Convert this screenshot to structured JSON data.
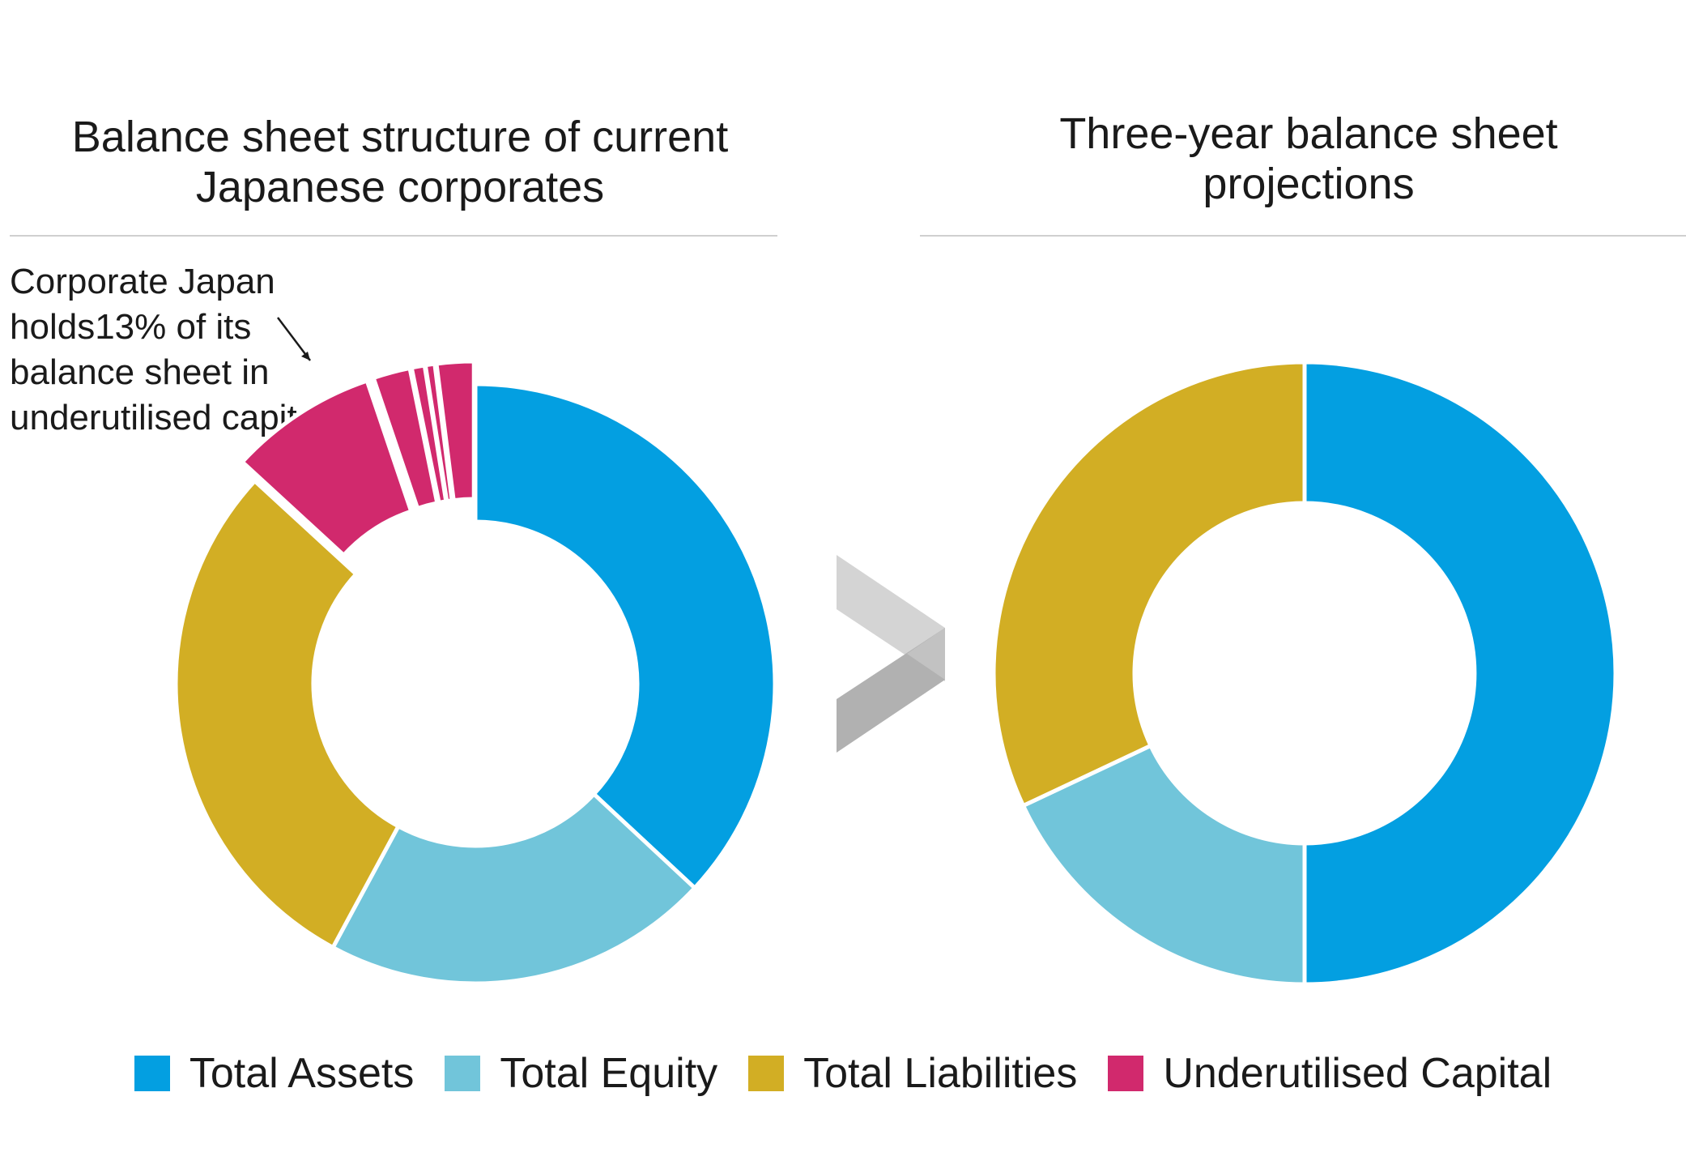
{
  "chart_data": [
    {
      "type": "donut",
      "title": "Balance sheet structure of current\nJapanese corporates",
      "annotation": "Corporate Japan holds13% of its balance sheet in underutilised capital",
      "series": [
        {
          "name": "Total Assets",
          "value": 37,
          "color": "#039fe1"
        },
        {
          "name": "Total Equity",
          "value": 21,
          "color": "#71c5da"
        },
        {
          "name": "Total Liabilities",
          "value": 29,
          "color": "#d2ae24"
        },
        {
          "name": "Underutilised Capital",
          "value": 8,
          "color": "#d1296d"
        },
        {
          "name": "Underutilised Capital",
          "value": 2,
          "color": "#d1296d"
        },
        {
          "name": "Underutilised Capital",
          "value": 0.7,
          "color": "#d1296d"
        },
        {
          "name": "Underutilised Capital",
          "value": 0.5,
          "color": "#d1296d"
        },
        {
          "name": "Underutilised Capital",
          "value": 2,
          "color": "#d1296d"
        }
      ],
      "exploded_segment": "Underutilised Capital"
    },
    {
      "type": "donut",
      "title": "Three-year balance sheet\nprojections",
      "series": [
        {
          "name": "Total Assets",
          "value": 50,
          "color": "#039fe1"
        },
        {
          "name": "Total Equity",
          "value": 18,
          "color": "#71c5da"
        },
        {
          "name": "Total Liabilities",
          "value": 32,
          "color": "#d2ae24"
        }
      ]
    }
  ],
  "legend": [
    {
      "label": "Total Assets",
      "color": "#039fe1"
    },
    {
      "label": "Total Equity",
      "color": "#71c5da"
    },
    {
      "label": "Total Liabilities",
      "color": "#d2ae24"
    },
    {
      "label": "Underutilised Capital",
      "color": "#d1296d"
    }
  ],
  "arrow_icon": "chevron-right-icon"
}
